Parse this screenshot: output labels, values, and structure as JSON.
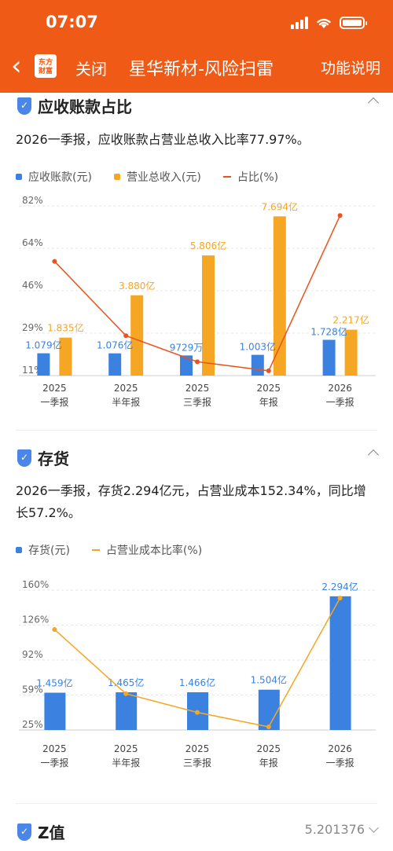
{
  "status": {
    "time": "07:07"
  },
  "nav": {
    "logo": "东方财富",
    "close": "关闭",
    "title": "星华新材-风险扫雷",
    "help": "功能说明"
  },
  "sections": [
    {
      "title": "应收账款占比",
      "summary": "2026一季报，应收账款占营业总收入比率77.97%。",
      "legend": [
        "应收账款(元)",
        "营业总收入(元)",
        "占比(%)"
      ]
    },
    {
      "title": "存货",
      "summary": "2026一季报，存货2.294亿元，占营业成本152.34%，同比增长57.2%。",
      "legend": [
        "存货(元)",
        "占营业成本比率(%)"
      ]
    },
    {
      "title": "Z值",
      "value": "5.201376"
    }
  ],
  "colors": {
    "brand": "#ef5a17",
    "blue": "#3b82e0",
    "yellow": "#f5a623",
    "red": "#e9531d",
    "orange": "#f5a623"
  },
  "chart_data": [
    {
      "type": "bar",
      "categories": [
        "2025\n一季报",
        "2025\n半年报",
        "2025\n三季报",
        "2025\n年报",
        "2026\n一季报"
      ],
      "y_ticks": [
        "82%",
        "64%",
        "46%",
        "29%",
        "11%"
      ],
      "series": [
        {
          "name": "应收账款(元)",
          "values": [
            1.079,
            1.076,
            0.9729,
            1.003,
            1.728
          ],
          "labels": [
            "1.079亿",
            "1.076亿",
            "9729万",
            "1.003亿",
            "1.728亿"
          ]
        },
        {
          "name": "营业总收入(元)",
          "values": [
            1.835,
            3.88,
            5.806,
            7.694,
            2.217
          ],
          "labels": [
            "1.835亿",
            "3.880亿",
            "5.806亿",
            "7.694亿",
            "2.217亿"
          ]
        },
        {
          "name": "占比(%)",
          "type": "line",
          "values": [
            58.8,
            27.7,
            16.8,
            13.0,
            77.97
          ]
        }
      ]
    },
    {
      "type": "bar",
      "categories": [
        "2025\n一季报",
        "2025\n半年报",
        "2025\n三季报",
        "2025\n年报",
        "2026\n一季报"
      ],
      "y_ticks": [
        "160%",
        "126%",
        "92%",
        "59%",
        "25%"
      ],
      "series": [
        {
          "name": "存货(元)",
          "values": [
            1.459,
            1.465,
            1.466,
            1.504,
            2.294
          ],
          "labels": [
            "1.459亿",
            "1.465亿",
            "1.466亿",
            "1.504亿",
            "2.294亿"
          ]
        },
        {
          "name": "占营业成本比率(%)",
          "type": "line",
          "values": [
            122,
            60,
            42,
            28,
            152.34
          ]
        }
      ]
    }
  ]
}
